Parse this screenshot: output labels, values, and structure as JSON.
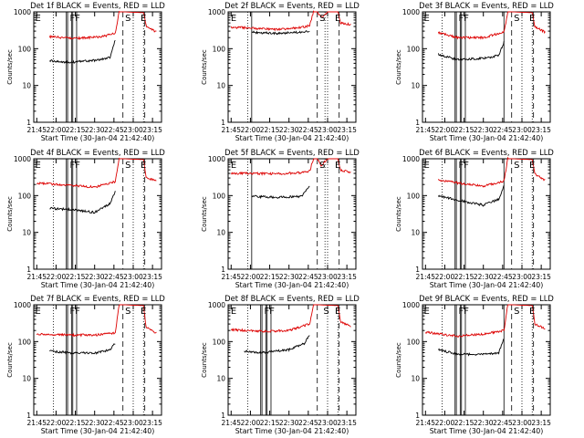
{
  "colors": {
    "events": "#000000",
    "lld": "#dd0000",
    "axis": "#000000",
    "background": "#ffffff"
  },
  "common": {
    "xlabel": "Start Time (30-Jan-04 21:42:40)",
    "ylabel": "Counts/sec",
    "xticks": [
      "21:45",
      "22:00",
      "22:15",
      "22:30",
      "22:45",
      "23:00",
      "23:15"
    ],
    "yticks": [
      "1",
      "10",
      "100",
      "1000"
    ]
  },
  "chart_data": [
    {
      "type": "line",
      "title": "Det 1f BLACK = Events, RED = LLD",
      "ylim": [
        1,
        1000
      ],
      "y_scale": "log",
      "xlim": [
        "21:42:40",
        "23:22:00"
      ],
      "markers": [
        {
          "label": "E",
          "x": "21:43"
        },
        {
          "label": "F",
          "x": "22:10"
        },
        {
          "label": "F",
          "x": "22:14"
        },
        {
          "label": "S",
          "x": "22:53"
        },
        {
          "label": "E",
          "x": "23:05"
        }
      ],
      "solid_lines": [
        "22:08",
        "22:09",
        "22:12",
        "22:13",
        "22:16"
      ],
      "dotted_lines": [
        "21:58",
        "23:00",
        "23:08"
      ],
      "dashed_lines": [
        "22:52",
        "23:09"
      ],
      "series": [
        {
          "name": "LLD",
          "color": "red",
          "x": [
            "21:55",
            "22:15",
            "22:35",
            "22:46",
            "22:49",
            "22:52",
            "23:08",
            "23:10",
            "23:18"
          ],
          "values": [
            210,
            190,
            210,
            260,
            1000,
            1000,
            950,
            420,
            280
          ]
        },
        {
          "name": "Events",
          "color": "black",
          "x": [
            "21:55",
            "22:10",
            "22:30",
            "22:42",
            "22:46"
          ],
          "values": [
            48,
            42,
            48,
            58,
            170
          ]
        }
      ]
    },
    {
      "type": "line",
      "title": "Det 2f BLACK = Events, RED = LLD",
      "ylim": [
        1,
        1000
      ],
      "y_scale": "log",
      "xlim": [
        "21:42:40",
        "23:22:00"
      ],
      "markers": [
        {
          "label": "E",
          "x": "21:44"
        },
        {
          "label": "S",
          "x": "22:53"
        },
        {
          "label": "E",
          "x": "23:05"
        }
      ],
      "solid_lines": [
        "22:01"
      ],
      "dotted_lines": [
        "21:58",
        "22:58",
        "23:00"
      ],
      "dashed_lines": [
        "22:52",
        "23:09"
      ],
      "series": [
        {
          "name": "LLD",
          "color": "red",
          "x": [
            "21:45",
            "22:00",
            "22:20",
            "22:40",
            "22:46",
            "22:49",
            "22:52",
            "22:55",
            "23:00",
            "23:08",
            "23:10",
            "23:18"
          ],
          "values": [
            380,
            370,
            330,
            380,
            420,
            1000,
            1000,
            700,
            1000,
            1000,
            500,
            450
          ]
        },
        {
          "name": "Events",
          "color": "black",
          "x": [
            "22:01",
            "22:20",
            "22:40",
            "22:46"
          ],
          "values": [
            280,
            260,
            280,
            300
          ]
        }
      ]
    },
    {
      "type": "line",
      "title": "Det 3f BLACK = Events, RED = LLD",
      "ylim": [
        1,
        1000
      ],
      "y_scale": "log",
      "xlim": [
        "21:42:40",
        "23:22:00"
      ],
      "markers": [
        {
          "label": "E",
          "x": "21:43"
        },
        {
          "label": "F",
          "x": "22:10"
        },
        {
          "label": "F",
          "x": "22:14"
        },
        {
          "label": "S",
          "x": "22:53"
        },
        {
          "label": "E",
          "x": "23:05"
        }
      ],
      "solid_lines": [
        "22:08",
        "22:09",
        "22:12",
        "22:13",
        "22:16",
        "22:46"
      ],
      "dotted_lines": [
        "21:58",
        "23:00",
        "23:08"
      ],
      "dashed_lines": [
        "22:52",
        "23:09"
      ],
      "series": [
        {
          "name": "LLD",
          "color": "red",
          "x": [
            "21:55",
            "22:10",
            "22:30",
            "22:46",
            "22:49",
            "22:52",
            "23:08",
            "23:10",
            "23:18"
          ],
          "values": [
            270,
            200,
            200,
            280,
            1000,
            1000,
            950,
            400,
            280
          ]
        },
        {
          "name": "Events",
          "color": "black",
          "x": [
            "21:55",
            "22:10",
            "22:30",
            "22:42",
            "22:46"
          ],
          "values": [
            70,
            50,
            55,
            65,
            150
          ]
        }
      ]
    },
    {
      "type": "line",
      "title": "Det 4f BLACK = Events, RED = LLD",
      "ylim": [
        1,
        1000
      ],
      "y_scale": "log",
      "xlim": [
        "21:42:40",
        "23:22:00"
      ],
      "markers": [
        {
          "label": "E",
          "x": "21:43"
        },
        {
          "label": "F",
          "x": "22:10"
        },
        {
          "label": "F",
          "x": "22:14"
        },
        {
          "label": "S",
          "x": "22:53"
        },
        {
          "label": "E",
          "x": "23:05"
        }
      ],
      "solid_lines": [
        "22:08",
        "22:09",
        "22:12",
        "22:13",
        "22:16"
      ],
      "dotted_lines": [
        "21:58",
        "23:00",
        "23:08"
      ],
      "dashed_lines": [
        "22:52",
        "23:09"
      ],
      "series": [
        {
          "name": "LLD",
          "color": "red",
          "x": [
            "21:45",
            "22:10",
            "22:30",
            "22:46",
            "22:49",
            "22:52",
            "23:08",
            "23:10",
            "23:18"
          ],
          "values": [
            220,
            190,
            170,
            240,
            1000,
            1000,
            950,
            300,
            260
          ]
        },
        {
          "name": "Events",
          "color": "black",
          "x": [
            "21:55",
            "22:10",
            "22:30",
            "22:42",
            "22:46"
          ],
          "values": [
            45,
            42,
            35,
            60,
            130
          ]
        }
      ]
    },
    {
      "type": "line",
      "title": "Det 5f BLACK = Events, RED = LLD",
      "ylim": [
        1,
        1000
      ],
      "y_scale": "log",
      "xlim": [
        "21:42:40",
        "23:22:00"
      ],
      "markers": [
        {
          "label": "E",
          "x": "21:44"
        },
        {
          "label": "S",
          "x": "22:53"
        },
        {
          "label": "E",
          "x": "23:05"
        }
      ],
      "solid_lines": [
        "22:01"
      ],
      "dotted_lines": [
        "21:58",
        "22:58",
        "23:00"
      ],
      "dashed_lines": [
        "22:52",
        "23:09"
      ],
      "series": [
        {
          "name": "LLD",
          "color": "red",
          "x": [
            "21:45",
            "22:00",
            "22:20",
            "22:40",
            "22:46",
            "22:49",
            "22:52",
            "22:55",
            "23:00",
            "23:08",
            "23:10",
            "23:18"
          ],
          "values": [
            400,
            400,
            390,
            420,
            460,
            1000,
            1000,
            650,
            1000,
            1000,
            500,
            420
          ]
        },
        {
          "name": "Events",
          "color": "black",
          "x": [
            "22:01",
            "22:20",
            "22:40",
            "22:46"
          ],
          "values": [
            95,
            90,
            95,
            190
          ]
        }
      ]
    },
    {
      "type": "line",
      "title": "Det 6f BLACK = Events, RED = LLD",
      "ylim": [
        1,
        1000
      ],
      "y_scale": "log",
      "xlim": [
        "21:42:40",
        "23:22:00"
      ],
      "markers": [
        {
          "label": "E",
          "x": "21:43"
        },
        {
          "label": "F",
          "x": "22:10"
        },
        {
          "label": "F",
          "x": "22:14"
        },
        {
          "label": "S",
          "x": "22:53"
        },
        {
          "label": "E",
          "x": "23:05"
        }
      ],
      "solid_lines": [
        "22:08",
        "22:09",
        "22:12",
        "22:13",
        "22:16",
        "22:46"
      ],
      "dotted_lines": [
        "21:58",
        "23:00",
        "23:08"
      ],
      "dashed_lines": [
        "22:52",
        "23:09"
      ],
      "series": [
        {
          "name": "LLD",
          "color": "red",
          "x": [
            "21:55",
            "22:10",
            "22:30",
            "22:46",
            "22:49",
            "22:52",
            "23:08",
            "23:10",
            "23:18"
          ],
          "values": [
            270,
            220,
            180,
            250,
            1000,
            1000,
            950,
            380,
            260
          ]
        },
        {
          "name": "Events",
          "color": "black",
          "x": [
            "21:55",
            "22:10",
            "22:30",
            "22:42",
            "22:46"
          ],
          "values": [
            100,
            75,
            55,
            80,
            180
          ]
        }
      ]
    },
    {
      "type": "line",
      "title": "Det 7f BLACK = Events, RED = LLD",
      "ylim": [
        1,
        1000
      ],
      "y_scale": "log",
      "xlim": [
        "21:42:40",
        "23:22:00"
      ],
      "markers": [
        {
          "label": "E",
          "x": "21:43"
        },
        {
          "label": "F",
          "x": "22:10"
        },
        {
          "label": "F",
          "x": "22:14"
        },
        {
          "label": "S",
          "x": "22:53"
        },
        {
          "label": "E",
          "x": "23:05"
        }
      ],
      "solid_lines": [
        "22:08",
        "22:09",
        "22:12",
        "22:13",
        "22:16"
      ],
      "dotted_lines": [
        "21:58",
        "23:00",
        "23:08"
      ],
      "dashed_lines": [
        "22:52",
        "23:09"
      ],
      "series": [
        {
          "name": "LLD",
          "color": "red",
          "x": [
            "21:45",
            "22:10",
            "22:30",
            "22:46",
            "22:49",
            "22:52",
            "23:08",
            "23:10",
            "23:18"
          ],
          "values": [
            160,
            150,
            150,
            170,
            1000,
            1000,
            950,
            250,
            170
          ]
        },
        {
          "name": "Events",
          "color": "black",
          "x": [
            "21:55",
            "22:10",
            "22:30",
            "22:42",
            "22:46"
          ],
          "values": [
            55,
            50,
            48,
            60,
            90
          ]
        }
      ]
    },
    {
      "type": "line",
      "title": "Det 8f BLACK = Events, RED = LLD",
      "ylim": [
        1,
        1000
      ],
      "y_scale": "log",
      "xlim": [
        "21:42:40",
        "23:22:00"
      ],
      "markers": [
        {
          "label": "E",
          "x": "21:44"
        },
        {
          "label": "F",
          "x": "22:10"
        },
        {
          "label": "F",
          "x": "22:14"
        },
        {
          "label": "S",
          "x": "22:56"
        },
        {
          "label": "E",
          "x": "23:05"
        }
      ],
      "solid_lines": [
        "22:08",
        "22:09",
        "22:12",
        "22:13",
        "22:16"
      ],
      "dotted_lines": [
        "21:58",
        "23:00",
        "23:08"
      ],
      "dashed_lines": [
        "22:52",
        "23:09"
      ],
      "series": [
        {
          "name": "LLD",
          "color": "red",
          "x": [
            "21:45",
            "22:10",
            "22:30",
            "22:46",
            "22:49",
            "22:52",
            "23:08",
            "23:10",
            "23:18"
          ],
          "values": [
            210,
            190,
            200,
            300,
            1000,
            1000,
            950,
            350,
            260
          ]
        },
        {
          "name": "Events",
          "color": "black",
          "x": [
            "21:55",
            "22:10",
            "22:30",
            "22:42",
            "22:46"
          ],
          "values": [
            55,
            50,
            60,
            90,
            150
          ]
        }
      ]
    },
    {
      "type": "line",
      "title": "Det 9f BLACK = Events, RED = LLD",
      "ylim": [
        1,
        1000
      ],
      "y_scale": "log",
      "xlim": [
        "21:42:40",
        "23:22:00"
      ],
      "markers": [
        {
          "label": "E",
          "x": "21:43"
        },
        {
          "label": "F",
          "x": "22:10"
        },
        {
          "label": "F",
          "x": "22:14"
        },
        {
          "label": "S",
          "x": "22:53"
        },
        {
          "label": "E",
          "x": "23:05"
        }
      ],
      "solid_lines": [
        "22:08",
        "22:09",
        "22:12",
        "22:13",
        "22:16",
        "22:46"
      ],
      "dotted_lines": [
        "21:58",
        "23:00",
        "23:08"
      ],
      "dashed_lines": [
        "22:52",
        "23:09"
      ],
      "series": [
        {
          "name": "LLD",
          "color": "red",
          "x": [
            "21:45",
            "22:10",
            "22:30",
            "22:46",
            "22:49",
            "22:52",
            "23:08",
            "23:10",
            "23:18"
          ],
          "values": [
            180,
            140,
            160,
            200,
            1000,
            1000,
            950,
            300,
            220
          ]
        },
        {
          "name": "Events",
          "color": "black",
          "x": [
            "21:55",
            "22:10",
            "22:30",
            "22:42",
            "22:46"
          ],
          "values": [
            60,
            45,
            45,
            50,
            120
          ]
        }
      ]
    }
  ]
}
